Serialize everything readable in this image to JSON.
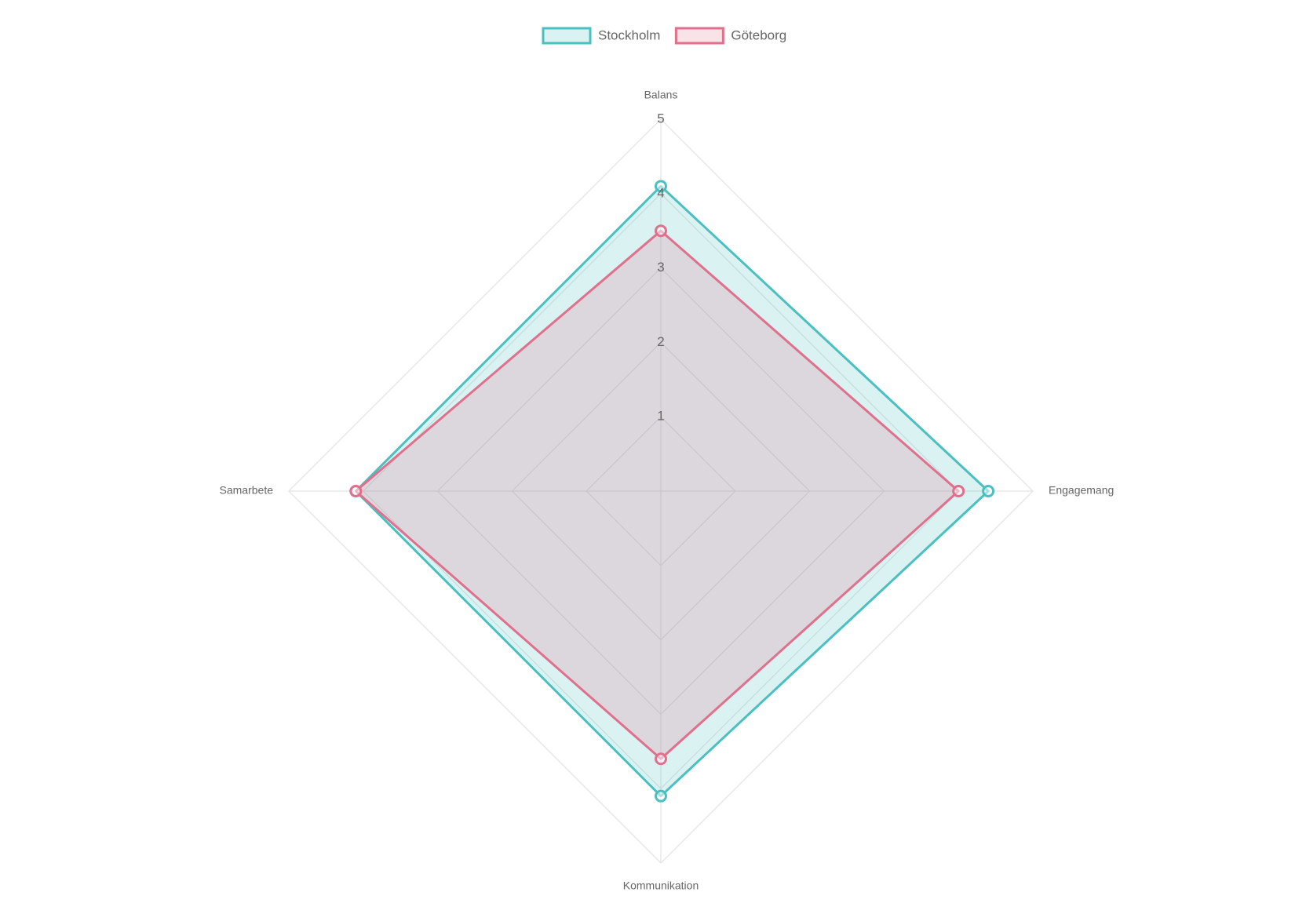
{
  "chart_data": {
    "type": "radar",
    "categories": [
      "Balans",
      "Engagemang",
      "Kommunikation",
      "Samarbete"
    ],
    "series": [
      {
        "name": "Stockholm",
        "color": "#4bc0c0",
        "values": [
          4.1,
          4.4,
          4.1,
          4.1
        ]
      },
      {
        "name": "Göteborg",
        "color": "#e0708c",
        "values": [
          3.5,
          4.0,
          3.6,
          4.1
        ]
      }
    ],
    "rlim": [
      0,
      5
    ],
    "rticks": [
      1,
      2,
      3,
      4,
      5
    ],
    "grid": true,
    "legend": "top"
  }
}
